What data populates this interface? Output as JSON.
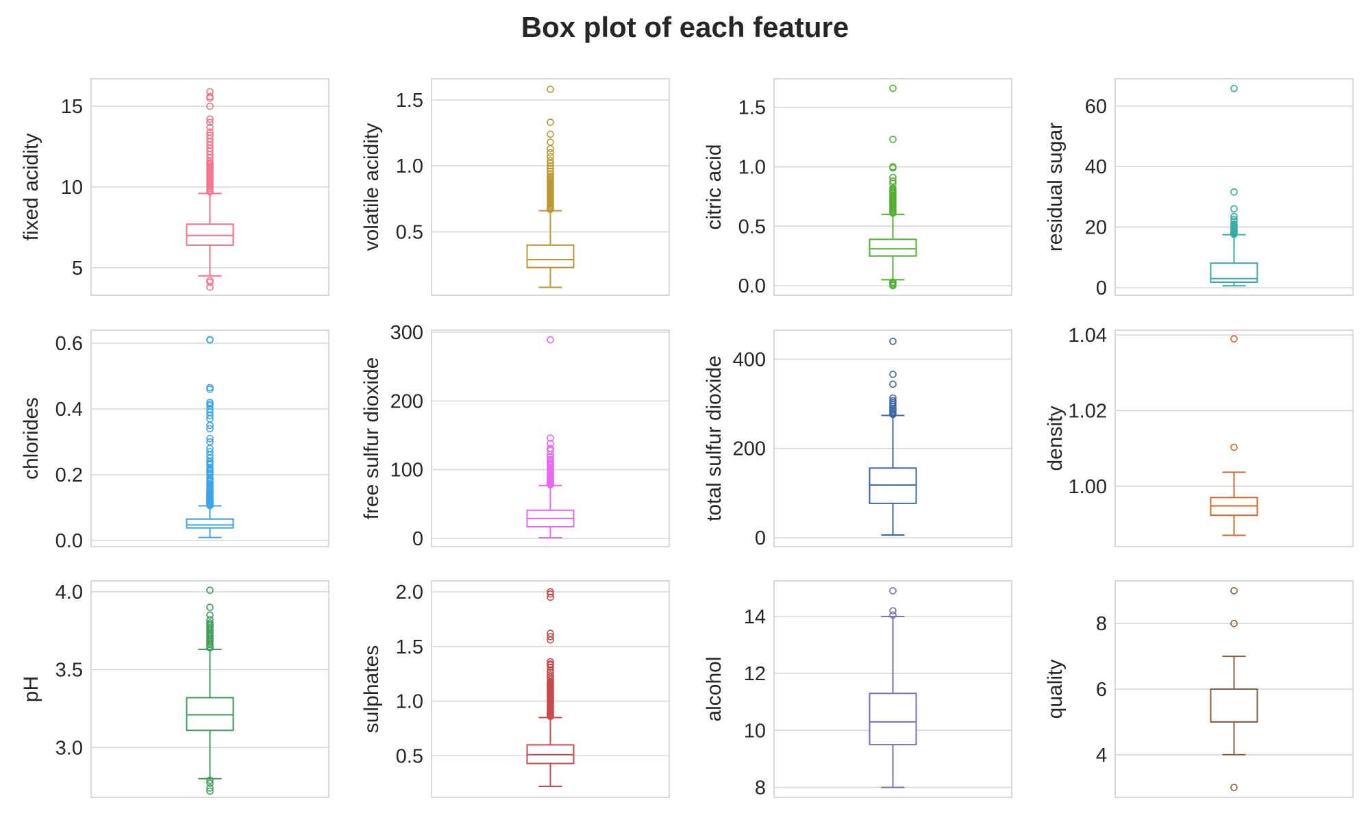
{
  "title": "Box plot of each feature",
  "chart_data": [
    {
      "type": "box",
      "ylabel": "fixed acidity",
      "color": "#f77189",
      "ylim": [
        3.3,
        16.7
      ],
      "ticks": [
        5,
        10,
        15
      ],
      "tick_labels": [
        "5",
        "10",
        "15"
      ],
      "whisker_low": 4.5,
      "q1": 6.4,
      "median": 7.0,
      "q3": 7.7,
      "whisker_high": 9.6,
      "outliers": [
        3.8,
        4.1,
        4.2,
        9.7,
        9.8,
        9.9,
        10.0,
        10.1,
        10.2,
        10.3,
        10.4,
        10.5,
        10.6,
        10.7,
        10.8,
        10.9,
        11.0,
        11.1,
        11.2,
        11.3,
        11.4,
        11.5,
        11.6,
        11.8,
        12.0,
        12.2,
        12.4,
        12.6,
        12.8,
        13.0,
        13.2,
        13.4,
        13.7,
        14.0,
        14.2,
        15.0,
        15.5,
        15.6,
        15.9
      ]
    },
    {
      "type": "box",
      "ylabel": "volatile acidity",
      "color": "#bb9832",
      "ylim": [
        0.02,
        1.66
      ],
      "ticks": [
        0.5,
        1.0,
        1.5
      ],
      "tick_labels": [
        "0.5",
        "1.0",
        "1.5"
      ],
      "whisker_low": 0.08,
      "q1": 0.23,
      "median": 0.29,
      "q3": 0.4,
      "whisker_high": 0.66,
      "outliers": [
        0.67,
        0.68,
        0.69,
        0.7,
        0.71,
        0.72,
        0.73,
        0.74,
        0.75,
        0.76,
        0.77,
        0.78,
        0.79,
        0.8,
        0.81,
        0.82,
        0.83,
        0.84,
        0.85,
        0.86,
        0.87,
        0.88,
        0.89,
        0.9,
        0.91,
        0.92,
        0.94,
        0.96,
        0.98,
        1.0,
        1.02,
        1.04,
        1.07,
        1.1,
        1.13,
        1.18,
        1.24,
        1.33,
        1.58
      ]
    },
    {
      "type": "box",
      "ylabel": "citric acid",
      "color": "#50b131",
      "ylim": [
        -0.08,
        1.74
      ],
      "ticks": [
        0.0,
        0.5,
        1.0,
        1.5
      ],
      "tick_labels": [
        "0.0",
        "0.5",
        "1.0",
        "1.5"
      ],
      "whisker_low": 0.05,
      "q1": 0.25,
      "median": 0.31,
      "q3": 0.39,
      "whisker_high": 0.6,
      "outliers": [
        0.0,
        0.01,
        0.02,
        0.03,
        0.61,
        0.62,
        0.63,
        0.64,
        0.65,
        0.66,
        0.67,
        0.68,
        0.69,
        0.7,
        0.71,
        0.72,
        0.73,
        0.74,
        0.75,
        0.76,
        0.78,
        0.79,
        0.8,
        0.81,
        0.82,
        0.86,
        0.88,
        0.91,
        0.99,
        1.0,
        1.23,
        1.66
      ]
    },
    {
      "type": "box",
      "ylabel": "residual sugar",
      "color": "#36ada4",
      "ylim": [
        -2.5,
        69
      ],
      "ticks": [
        0,
        20,
        40,
        60
      ],
      "tick_labels": [
        "0",
        "20",
        "40",
        "60"
      ],
      "whisker_low": 0.6,
      "q1": 1.8,
      "median": 3.0,
      "q3": 8.1,
      "whisker_high": 17.5,
      "outliers": [
        17.6,
        17.8,
        18.0,
        18.1,
        18.3,
        18.5,
        18.8,
        19.0,
        19.3,
        19.5,
        19.8,
        20.0,
        20.3,
        20.7,
        21.0,
        22.0,
        22.6,
        23.5,
        26.05,
        31.6,
        65.8
      ]
    },
    {
      "type": "box",
      "ylabel": "chlorides",
      "color": "#3ba3ec",
      "ylim": [
        -0.019,
        0.64
      ],
      "ticks": [
        0.0,
        0.2,
        0.4,
        0.6
      ],
      "tick_labels": [
        "0.0",
        "0.2",
        "0.4",
        "0.6"
      ],
      "whisker_low": 0.009,
      "q1": 0.038,
      "median": 0.047,
      "q3": 0.065,
      "whisker_high": 0.105,
      "outliers": [
        0.106,
        0.108,
        0.11,
        0.112,
        0.115,
        0.118,
        0.12,
        0.123,
        0.126,
        0.13,
        0.133,
        0.136,
        0.14,
        0.143,
        0.146,
        0.15,
        0.155,
        0.16,
        0.165,
        0.17,
        0.175,
        0.18,
        0.185,
        0.19,
        0.2,
        0.205,
        0.21,
        0.215,
        0.22,
        0.23,
        0.235,
        0.24,
        0.25,
        0.26,
        0.27,
        0.28,
        0.3,
        0.31,
        0.34,
        0.35,
        0.37,
        0.38,
        0.39,
        0.4,
        0.41,
        0.415,
        0.42,
        0.46,
        0.465,
        0.61,
        0.611
      ]
    },
    {
      "type": "box",
      "ylabel": "free sulfur dioxide",
      "color": "#e866f4",
      "ylim": [
        -12,
        303
      ],
      "ticks": [
        0,
        100,
        200,
        300
      ],
      "tick_labels": [
        "0",
        "100",
        "200",
        "300"
      ],
      "whisker_low": 1,
      "q1": 17,
      "median": 29,
      "q3": 41,
      "whisker_high": 77,
      "outliers": [
        78,
        79,
        80,
        81,
        82,
        83,
        84,
        85,
        86,
        87,
        88,
        89,
        90,
        92,
        94,
        96,
        98,
        100,
        102,
        104,
        106,
        108,
        110,
        112,
        115,
        118,
        122,
        128,
        131,
        138,
        146,
        289
      ]
    },
    {
      "type": "box",
      "ylabel": "total sulfur dioxide",
      "color": "#3b67a4",
      "ylim": [
        -20,
        465
      ],
      "ticks": [
        0,
        200,
        400
      ],
      "tick_labels": [
        "0",
        "200",
        "400"
      ],
      "whisker_low": 6,
      "q1": 77,
      "median": 118,
      "q3": 156,
      "whisker_high": 274,
      "outliers": [
        276,
        278,
        282,
        285,
        288,
        290,
        294,
        298,
        303,
        307,
        313,
        344,
        366,
        440
      ]
    },
    {
      "type": "box",
      "ylabel": "density",
      "color": "#d1682c",
      "ylim": [
        0.984,
        1.0413
      ],
      "ticks": [
        1.0,
        1.02,
        1.04
      ],
      "tick_labels": [
        "1.00",
        "1.02",
        "1.04"
      ],
      "whisker_low": 0.987,
      "q1": 0.9923,
      "median": 0.9948,
      "q3": 0.997,
      "whisker_high": 1.0037,
      "outliers": [
        1.0103,
        1.039
      ]
    },
    {
      "type": "box",
      "ylabel": "pH",
      "color": "#3d9e5a",
      "ylim": [
        2.68,
        4.07
      ],
      "ticks": [
        3.0,
        3.5,
        4.0
      ],
      "tick_labels": [
        "3.0",
        "3.5",
        "4.0"
      ],
      "whisker_low": 2.8,
      "q1": 3.11,
      "median": 3.21,
      "q3": 3.32,
      "whisker_high": 3.63,
      "outliers": [
        2.72,
        2.74,
        2.77,
        2.79,
        3.64,
        3.65,
        3.66,
        3.67,
        3.68,
        3.69,
        3.7,
        3.71,
        3.72,
        3.73,
        3.74,
        3.75,
        3.76,
        3.77,
        3.78,
        3.79,
        3.8,
        3.82,
        3.85,
        3.9,
        4.01
      ]
    },
    {
      "type": "box",
      "ylabel": "sulphates",
      "color": "#c8484b",
      "ylim": [
        0.12,
        2.1
      ],
      "ticks": [
        0.5,
        1.0,
        1.5,
        2.0
      ],
      "tick_labels": [
        "0.5",
        "1.0",
        "1.5",
        "2.0"
      ],
      "whisker_low": 0.22,
      "q1": 0.43,
      "median": 0.51,
      "q3": 0.6,
      "whisker_high": 0.85,
      "outliers": [
        0.86,
        0.87,
        0.88,
        0.89,
        0.9,
        0.91,
        0.92,
        0.93,
        0.94,
        0.95,
        0.96,
        0.97,
        0.98,
        0.99,
        1.0,
        1.01,
        1.02,
        1.03,
        1.04,
        1.05,
        1.06,
        1.07,
        1.08,
        1.09,
        1.1,
        1.11,
        1.12,
        1.13,
        1.14,
        1.15,
        1.16,
        1.17,
        1.18,
        1.2,
        1.22,
        1.24,
        1.26,
        1.28,
        1.31,
        1.33,
        1.34,
        1.36,
        1.56,
        1.59,
        1.62,
        1.95,
        1.98,
        2.0
      ]
    },
    {
      "type": "box",
      "ylabel": "alcohol",
      "color": "#7b6dbc",
      "ylim": [
        7.65,
        15.25
      ],
      "ticks": [
        8,
        10,
        12,
        14
      ],
      "tick_labels": [
        "8",
        "10",
        "12",
        "14"
      ],
      "whisker_low": 8.0,
      "q1": 9.5,
      "median": 10.3,
      "q3": 11.3,
      "whisker_high": 14.0,
      "outliers": [
        14.05,
        14.2,
        14.9
      ]
    },
    {
      "type": "box",
      "ylabel": "quality",
      "color": "#8a6042",
      "ylim": [
        2.7,
        9.3
      ],
      "ticks": [
        4,
        6,
        8
      ],
      "tick_labels": [
        "4",
        "6",
        "8"
      ],
      "whisker_low": 4,
      "q1": 5,
      "median": 5,
      "q3": 6,
      "whisker_high": 7,
      "outliers": [
        3,
        8,
        9
      ]
    }
  ]
}
